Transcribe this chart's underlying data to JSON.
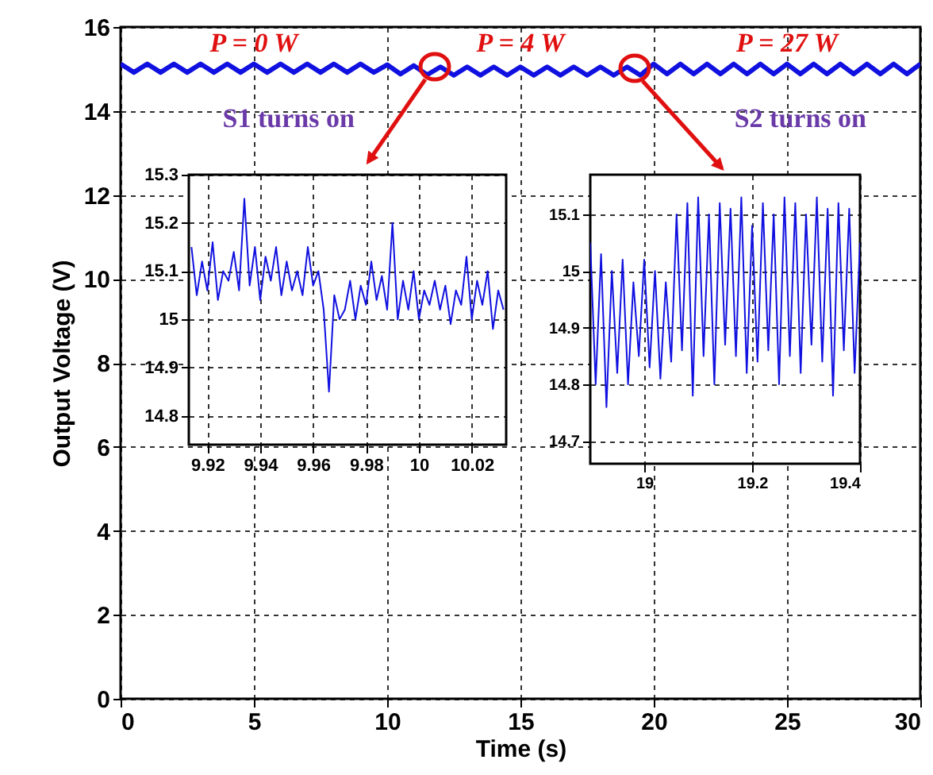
{
  "chart_data": [
    {
      "type": "line",
      "xlabel": "Time (s)",
      "ylabel": "Output Voltage (V)",
      "xlim": [
        0,
        30
      ],
      "ylim": [
        0,
        16
      ],
      "xticks": [
        0,
        5,
        10,
        15,
        20,
        25,
        30
      ],
      "yticks": [
        0,
        2,
        4,
        6,
        8,
        10,
        12,
        14,
        16
      ],
      "grid": true,
      "legend": false,
      "annotations": [
        "P = 0 W",
        "P = 4 W",
        "P = 27 W",
        "S1 turns on",
        "S2 turns on"
      ],
      "x": [
        0,
        0.5,
        1,
        1.5,
        2,
        2.5,
        3,
        3.5,
        4,
        4.5,
        5,
        5.5,
        6,
        6.5,
        7,
        7.5,
        8,
        8.5,
        9,
        9.5,
        10,
        10.5,
        11,
        11.5,
        12,
        12.5,
        13,
        13.5,
        14,
        14.5,
        15,
        15.5,
        16,
        16.5,
        17,
        17.5,
        18,
        18.5,
        19,
        19.5,
        20,
        20.5,
        21,
        21.5,
        22,
        22.5,
        23,
        23.5,
        24,
        24.5,
        25,
        25.5,
        26,
        26.5,
        27,
        27.5,
        28,
        28.5,
        29,
        29.5,
        30
      ],
      "series": [
        {
          "color": "#1010e0",
          "values": [
            15.12,
            14.92,
            15.12,
            14.92,
            15.12,
            14.92,
            15.12,
            14.92,
            15.12,
            14.92,
            15.12,
            14.92,
            15.12,
            14.92,
            15.12,
            14.92,
            15.12,
            14.92,
            15.12,
            14.92,
            15.1,
            14.88,
            15.08,
            14.86,
            15.05,
            14.85,
            15.05,
            14.85,
            15.05,
            14.85,
            15.05,
            14.85,
            15.05,
            14.85,
            15.05,
            14.85,
            15.05,
            14.85,
            15.05,
            14.85,
            15.12,
            14.88,
            15.12,
            14.88,
            15.12,
            14.88,
            15.12,
            14.88,
            15.12,
            14.88,
            15.12,
            14.88,
            15.12,
            14.88,
            15.12,
            14.88,
            15.12,
            14.88,
            15.12,
            14.88,
            15.12
          ]
        }
      ]
    },
    {
      "type": "line",
      "xlim": [
        9.913,
        10.033
      ],
      "ylim": [
        14.74,
        15.3
      ],
      "xticks": [
        9.92,
        9.94,
        9.96,
        9.98,
        10,
        10.02
      ],
      "yticks": [
        14.8,
        14.9,
        15,
        15.1,
        15.2,
        15.3
      ],
      "grid": true,
      "legend": false,
      "x": [
        9.914,
        9.916,
        9.918,
        9.92,
        9.922,
        9.924,
        9.926,
        9.928,
        9.93,
        9.932,
        9.934,
        9.936,
        9.938,
        9.94,
        9.942,
        9.944,
        9.946,
        9.948,
        9.95,
        9.952,
        9.954,
        9.956,
        9.958,
        9.96,
        9.962,
        9.964,
        9.966,
        9.968,
        9.97,
        9.972,
        9.974,
        9.976,
        9.978,
        9.98,
        9.982,
        9.984,
        9.986,
        9.988,
        9.99,
        9.992,
        9.994,
        9.996,
        9.998,
        10,
        10.002,
        10.004,
        10.006,
        10.008,
        10.01,
        10.012,
        10.014,
        10.016,
        10.018,
        10.02,
        10.022,
        10.024,
        10.026,
        10.028,
        10.03,
        10.032
      ],
      "series": [
        {
          "color": "#1010e0",
          "values": [
            15.15,
            15.05,
            15.12,
            15.06,
            15.16,
            15.04,
            15.1,
            15.08,
            15.14,
            15.06,
            15.25,
            15.07,
            15.15,
            15.04,
            15.13,
            15.08,
            15.15,
            15.05,
            15.12,
            15.06,
            15.1,
            15.05,
            15.15,
            15.07,
            15.1,
            15.02,
            14.85,
            15.05,
            15.0,
            15.02,
            15.08,
            15.0,
            15.07,
            15.03,
            15.12,
            15.04,
            15.09,
            15.02,
            15.2,
            15.0,
            15.08,
            15.02,
            15.1,
            15.0,
            15.06,
            15.03,
            15.08,
            15.02,
            15.07,
            14.99,
            15.06,
            15.03,
            15.13,
            15.0,
            15.08,
            15.03,
            15.1,
            14.98,
            15.06,
            15.02
          ]
        }
      ]
    },
    {
      "type": "line",
      "xlim": [
        18.9,
        19.4
      ],
      "ylim": [
        14.66,
        15.17
      ],
      "xticks": [
        19,
        19.2,
        19.4
      ],
      "yticks": [
        14.7,
        14.8,
        14.9,
        15,
        15.1
      ],
      "grid": true,
      "legend": false,
      "x": [
        18.9,
        18.91,
        18.92,
        18.93,
        18.94,
        18.95,
        18.96,
        18.97,
        18.98,
        18.99,
        19,
        19.01,
        19.02,
        19.03,
        19.04,
        19.05,
        19.06,
        19.07,
        19.08,
        19.09,
        19.1,
        19.11,
        19.12,
        19.13,
        19.14,
        19.15,
        19.16,
        19.17,
        19.18,
        19.19,
        19.2,
        19.21,
        19.22,
        19.23,
        19.24,
        19.25,
        19.26,
        19.27,
        19.28,
        19.29,
        19.3,
        19.31,
        19.32,
        19.33,
        19.34,
        19.35,
        19.36,
        19.37,
        19.38,
        19.39,
        19.4
      ],
      "series": [
        {
          "color": "#1010e0",
          "values": [
            15.05,
            14.8,
            15.03,
            14.76,
            15.0,
            14.82,
            15.02,
            14.8,
            14.98,
            14.85,
            15.02,
            14.83,
            15.0,
            14.81,
            14.98,
            14.84,
            15.1,
            14.86,
            15.12,
            14.78,
            15.13,
            14.85,
            15.1,
            14.8,
            15.12,
            14.87,
            15.11,
            14.85,
            15.13,
            14.82,
            15.08,
            14.84,
            15.12,
            14.86,
            15.1,
            14.8,
            15.13,
            14.85,
            15.12,
            14.82,
            15.1,
            14.87,
            15.13,
            14.84,
            15.11,
            14.78,
            15.12,
            14.86,
            15.11,
            14.82,
            15.05
          ]
        }
      ]
    }
  ]
}
